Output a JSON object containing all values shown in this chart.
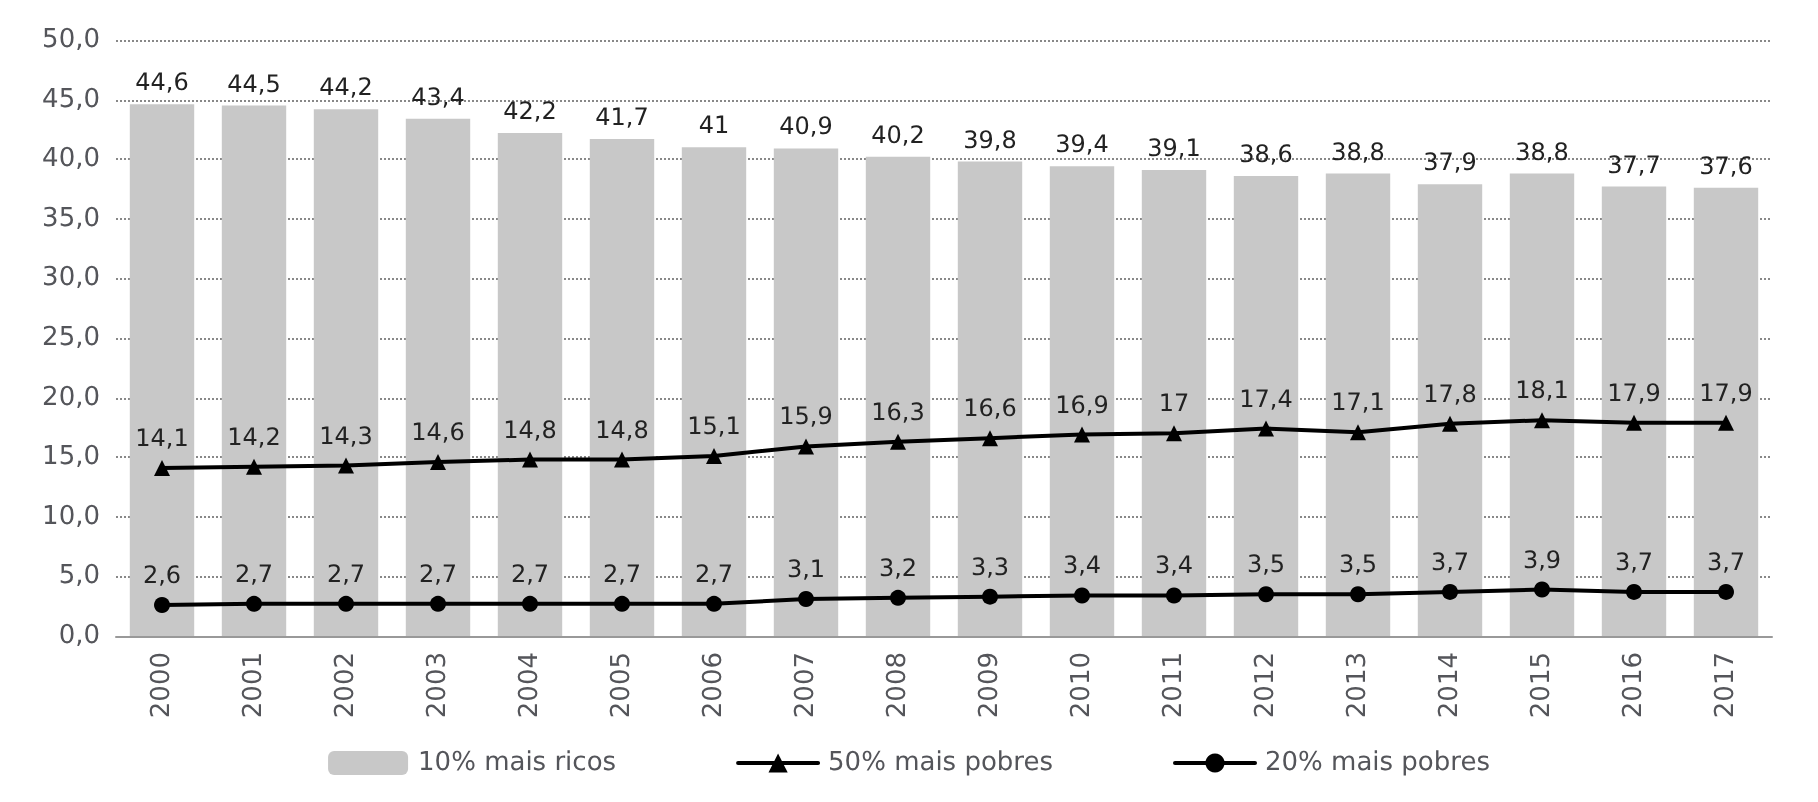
{
  "chart_data": {
    "type": "bar",
    "categories": [
      "2000",
      "2001",
      "2002",
      "2003",
      "2004",
      "2005",
      "2006",
      "2007",
      "2008",
      "2009",
      "2010",
      "2011",
      "2012",
      "2013",
      "2014",
      "2015",
      "2016",
      "2017"
    ],
    "series": [
      {
        "name": "10% mais ricos",
        "color": "#c8c8c8",
        "values": [
          44.6,
          44.5,
          44.2,
          43.4,
          42.2,
          41.7,
          41,
          40.9,
          40.2,
          39.8,
          39.4,
          39.1,
          38.6,
          38.8,
          37.9,
          38.8,
          37.7,
          37.6
        ],
        "value_labels": [
          "44,6",
          "44,5",
          "44,2",
          "43,4",
          "42,2",
          "41,7",
          "41",
          "40,9",
          "40,2",
          "39,8",
          "39,4",
          "39,1",
          "38,6",
          "38,8",
          "37,9",
          "38,8",
          "37,7",
          "37,6"
        ]
      },
      {
        "name": "50% mais pobres",
        "type": "line",
        "color": "#000000",
        "marker": "triangle",
        "values": [
          14.1,
          14.2,
          14.3,
          14.6,
          14.8,
          14.8,
          15.1,
          15.9,
          16.3,
          16.6,
          16.9,
          17,
          17.4,
          17.1,
          17.8,
          18.1,
          17.9,
          17.9
        ],
        "value_labels": [
          "14,1",
          "14,2",
          "14,3",
          "14,6",
          "14,8",
          "14,8",
          "15,1",
          "15,9",
          "16,3",
          "16,6",
          "16,9",
          "17",
          "17,4",
          "17,1",
          "17,8",
          "18,1",
          "17,9",
          "17,9"
        ]
      },
      {
        "name": "20% mais pobres",
        "type": "line",
        "color": "#000000",
        "marker": "circle",
        "values": [
          2.6,
          2.7,
          2.7,
          2.7,
          2.7,
          2.7,
          2.7,
          3.1,
          3.2,
          3.3,
          3.4,
          3.4,
          3.5,
          3.5,
          3.7,
          3.9,
          3.7,
          3.7
        ],
        "value_labels": [
          "2,6",
          "2,7",
          "2,7",
          "2,7",
          "2,7",
          "2,7",
          "2,7",
          "3,1",
          "3,2",
          "3,3",
          "3,4",
          "3,4",
          "3,5",
          "3,5",
          "3,7",
          "3,9",
          "3,7",
          "3,7"
        ]
      }
    ],
    "ylim": [
      0,
      50
    ],
    "yticks": [
      {
        "value": 0,
        "label": "0,0"
      },
      {
        "value": 5,
        "label": "5,0"
      },
      {
        "value": 10,
        "label": "10,0"
      },
      {
        "value": 15,
        "label": "15,0"
      },
      {
        "value": 20,
        "label": "20,0"
      },
      {
        "value": 25,
        "label": "25,0"
      },
      {
        "value": 30,
        "label": "30,0"
      },
      {
        "value": 35,
        "label": "35,0"
      },
      {
        "value": 40,
        "label": "40,0"
      },
      {
        "value": 45,
        "label": "45,0"
      },
      {
        "value": 50,
        "label": "50,0"
      }
    ],
    "grid": "y",
    "legend": "bottom",
    "line_style": "solid"
  }
}
